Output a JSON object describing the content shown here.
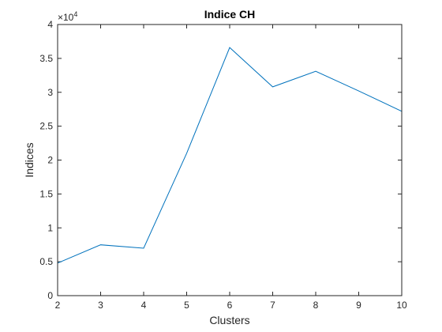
{
  "chart_data": {
    "type": "line",
    "title": "Indice CH",
    "xlabel": "Clusters",
    "ylabel": "Indices",
    "x": [
      2,
      3,
      4,
      5,
      6,
      7,
      8,
      9,
      10
    ],
    "series": [
      {
        "values": [
          4800,
          7500,
          7000,
          21000,
          36600,
          30800,
          33100,
          30200,
          27200
        ],
        "color": "#0072BD"
      }
    ],
    "xlim": [
      2,
      10
    ],
    "ylim": [
      0,
      40000
    ],
    "x_ticks": [
      2,
      3,
      4,
      5,
      6,
      7,
      8,
      9,
      10
    ],
    "y_ticks": [
      0,
      5000,
      10000,
      15000,
      20000,
      25000,
      30000,
      35000,
      40000
    ],
    "y_tick_labels": [
      "0",
      "0.5",
      "1",
      "1.5",
      "2",
      "2.5",
      "3",
      "3.5",
      "4"
    ],
    "y_exponent_prefix": "×10",
    "y_exponent": "4",
    "grid": false,
    "box": true
  }
}
